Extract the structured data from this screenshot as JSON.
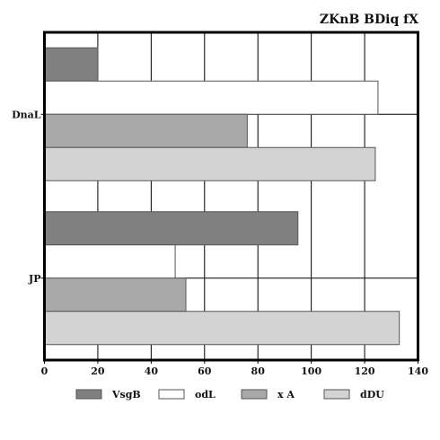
{
  "chart_data": {
    "type": "bar",
    "orientation": "horizontal",
    "title": "ZKnB BDiq fX",
    "xlabel": "",
    "ylabel": "",
    "categories": [
      "DnaL",
      "JP"
    ],
    "series": [
      {
        "name": "VsgB",
        "values": [
          20,
          95
        ],
        "color": "#808080"
      },
      {
        "name": "odL",
        "values": [
          125,
          49
        ],
        "color": "#ffffff"
      },
      {
        "name": "x A",
        "values": [
          76,
          53
        ],
        "color": "#a9a9a9"
      },
      {
        "name": "dDU",
        "values": [
          124,
          133
        ],
        "color": "#d3d3d3"
      }
    ],
    "xlim": [
      0,
      140
    ],
    "xticks": [
      "0",
      "20",
      "40",
      "60",
      "80",
      "100",
      "120",
      "140"
    ],
    "grid": true,
    "legend": "bottom"
  }
}
